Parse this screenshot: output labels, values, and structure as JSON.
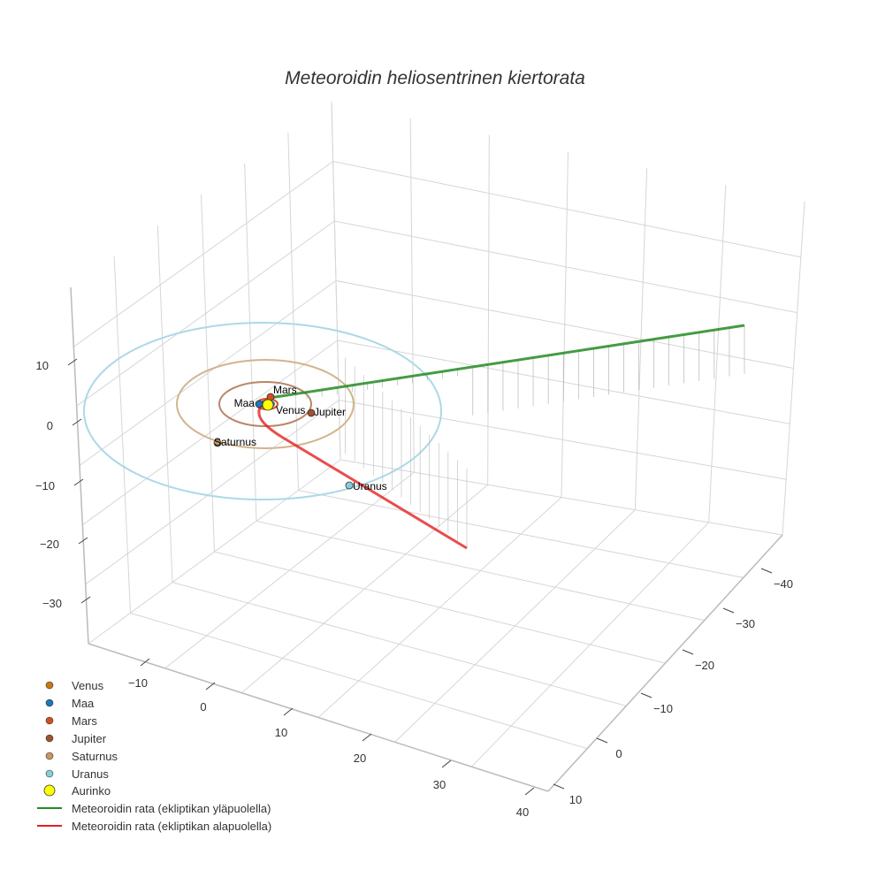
{
  "chart_data": {
    "type": "scatter3d",
    "title": "Meteoroidin heliosentrinen kiertorata",
    "axes": {
      "x_ticks": [
        "−10",
        "0",
        "10",
        "20",
        "30",
        "40"
      ],
      "y_ticks": [
        "−40",
        "−30",
        "−20",
        "−10",
        "0",
        "10"
      ],
      "z_ticks": [
        "10",
        "0",
        "−10",
        "−20",
        "−30"
      ],
      "grid": true
    },
    "planets": [
      {
        "name": "Venus",
        "color": "#c87814"
      },
      {
        "name": "Maa",
        "color": "#1f77b4"
      },
      {
        "name": "Mars",
        "color": "#d2501e"
      },
      {
        "name": "Jupiter",
        "color": "#a0522d"
      },
      {
        "name": "Saturnus",
        "color": "#c89664"
      },
      {
        "name": "Uranus",
        "color": "#87cedc"
      }
    ],
    "sun": {
      "name": "Aurinko",
      "color": "#ffff00"
    },
    "orbit_colors": {
      "Jupiter": "#b9866a",
      "Saturnus": "#d2b48c",
      "Uranus": "#add8e6"
    },
    "series": [
      {
        "name": "Meteoroidin rata (ekliptikan yläpuolella)",
        "color": "#228b22"
      },
      {
        "name": "Meteoroidin rata (ekliptikan alapuolella)",
        "color": "#e32020"
      }
    ],
    "legend_position": "bottom-left"
  }
}
